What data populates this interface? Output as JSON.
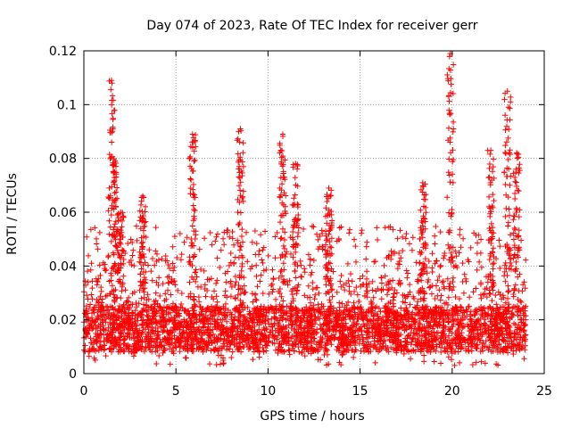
{
  "chart_data": {
    "type": "scatter",
    "title": "Day 074 of 2023, Rate Of TEC Index for receiver gerr",
    "xlabel": "GPS time / hours",
    "ylabel": "ROTI / TECUs",
    "xlim": [
      0,
      25
    ],
    "ylim": [
      0,
      0.12
    ],
    "x_ticks": [
      0,
      5,
      10,
      15,
      20,
      25
    ],
    "x_tick_labels": [
      "0",
      "5",
      "10",
      "15",
      "20",
      "25"
    ],
    "y_ticks": [
      0,
      0.02,
      0.04,
      0.06,
      0.08,
      0.1,
      0.12
    ],
    "y_tick_labels": [
      "0",
      "0.02",
      "0.04",
      "0.06",
      "0.08",
      "0.1",
      "0.12"
    ],
    "grid": true,
    "marker": "+",
    "color": "#ff0000",
    "series": [
      {
        "name": "ROTI",
        "data_range_x": [
          0,
          24
        ],
        "baseline_band": [
          0.008,
          0.025
        ],
        "bursts": [
          {
            "x": 1.5,
            "ymax": 0.109
          },
          {
            "x": 1.7,
            "ymax": 0.079
          },
          {
            "x": 2.0,
            "ymax": 0.06
          },
          {
            "x": 3.2,
            "ymax": 0.066
          },
          {
            "x": 5.9,
            "ymax": 0.089
          },
          {
            "x": 8.5,
            "ymax": 0.091
          },
          {
            "x": 10.8,
            "ymax": 0.089
          },
          {
            "x": 11.5,
            "ymax": 0.078
          },
          {
            "x": 13.3,
            "ymax": 0.069
          },
          {
            "x": 18.4,
            "ymax": 0.071
          },
          {
            "x": 19.9,
            "ymax": 0.119
          },
          {
            "x": 22.1,
            "ymax": 0.083
          },
          {
            "x": 23.0,
            "ymax": 0.105
          },
          {
            "x": 23.5,
            "ymax": 0.082
          }
        ]
      }
    ]
  }
}
